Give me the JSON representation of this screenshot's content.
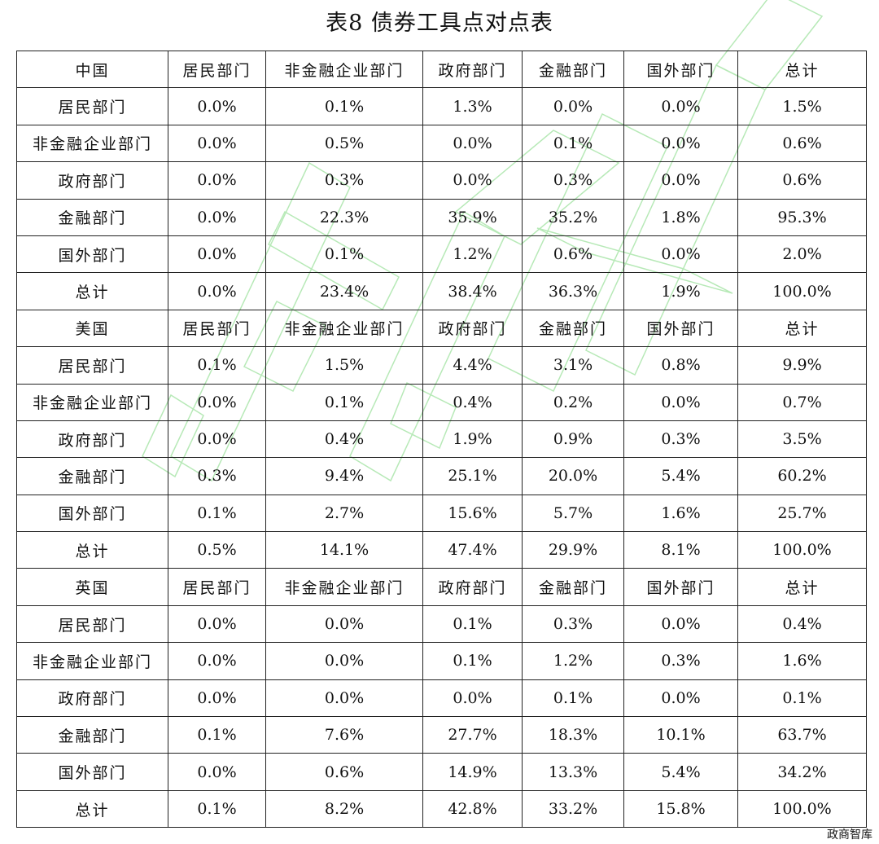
{
  "title": "表8  债券工具点对点表",
  "footer": "政商智库",
  "sections": [
    {
      "header": [
        "中国",
        "居民部门",
        "非金融企业部门",
        "政府部门",
        "金融部门",
        "国外部门",
        "总计"
      ],
      "rows": [
        [
          "居民部门",
          "0.0%",
          "0.1%",
          "1.3%",
          "0.0%",
          "0.0%",
          "1.5%"
        ],
        [
          "非金融企业部门",
          "0.0%",
          "0.5%",
          "0.0%",
          "0.1%",
          "0.0%",
          "0.6%"
        ],
        [
          "政府部门",
          "0.0%",
          "0.3%",
          "0.0%",
          "0.3%",
          "0.0%",
          "0.6%"
        ],
        [
          "金融部门",
          "0.0%",
          "22.3%",
          "35.9%",
          "35.2%",
          "1.8%",
          "95.3%"
        ],
        [
          "国外部门",
          "0.0%",
          "0.1%",
          "1.2%",
          "0.6%",
          "0.0%",
          "2.0%"
        ],
        [
          "总计",
          "0.0%",
          "23.4%",
          "38.4%",
          "36.3%",
          "1.9%",
          "100.0%"
        ]
      ]
    },
    {
      "header": [
        "美国",
        "居民部门",
        "非金融企业部门",
        "政府部门",
        "金融部门",
        "国外部门",
        "总计"
      ],
      "rows": [
        [
          "居民部门",
          "0.1%",
          "1.5%",
          "4.4%",
          "3.1%",
          "0.8%",
          "9.9%"
        ],
        [
          "非金融企业部门",
          "0.0%",
          "0.1%",
          "0.4%",
          "0.2%",
          "0.0%",
          "0.7%"
        ],
        [
          "政府部门",
          "0.0%",
          "0.4%",
          "1.9%",
          "0.9%",
          "0.3%",
          "3.5%"
        ],
        [
          "金融部门",
          "0.3%",
          "9.4%",
          "25.1%",
          "20.0%",
          "5.4%",
          "60.2%"
        ],
        [
          "国外部门",
          "0.1%",
          "2.7%",
          "15.6%",
          "5.7%",
          "1.6%",
          "25.7%"
        ],
        [
          "总计",
          "0.5%",
          "14.1%",
          "47.4%",
          "29.9%",
          "8.1%",
          "100.0%"
        ]
      ]
    },
    {
      "header": [
        "英国",
        "居民部门",
        "非金融企业部门",
        "政府部门",
        "金融部门",
        "国外部门",
        "总计"
      ],
      "rows": [
        [
          "居民部门",
          "0.0%",
          "0.0%",
          "0.1%",
          "0.3%",
          "0.0%",
          "0.4%"
        ],
        [
          "非金融企业部门",
          "0.0%",
          "0.0%",
          "0.1%",
          "1.2%",
          "0.3%",
          "1.6%"
        ],
        [
          "政府部门",
          "0.0%",
          "0.0%",
          "0.0%",
          "0.1%",
          "0.0%",
          "0.1%"
        ],
        [
          "金融部门",
          "0.1%",
          "7.6%",
          "27.7%",
          "18.3%",
          "10.1%",
          "63.7%"
        ],
        [
          "国外部门",
          "0.0%",
          "0.6%",
          "14.9%",
          "13.3%",
          "5.4%",
          "34.2%"
        ],
        [
          "总计",
          "0.1%",
          "8.2%",
          "42.8%",
          "33.2%",
          "15.8%",
          "100.0%"
        ]
      ]
    }
  ]
}
